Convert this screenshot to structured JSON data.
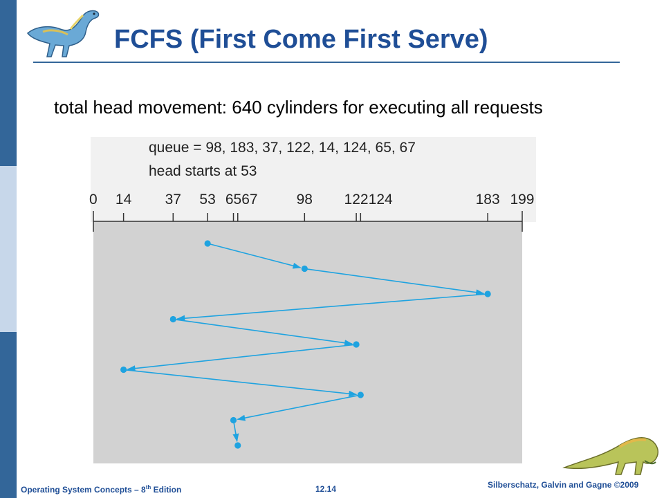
{
  "slide": {
    "title": "FCFS (First Come First Serve)",
    "subtitle": "total head movement: 640 cylinders for executing all requests"
  },
  "diagram": {
    "queue_text": "queue = 98, 183, 37, 122, 14, 124, 65, 67",
    "head_text": "head starts at 53",
    "axis_min": 0,
    "axis_max": 199,
    "tick_values": [
      0,
      14,
      37,
      53,
      65,
      67,
      98,
      122,
      124,
      183,
      199
    ],
    "tick_labels": [
      "0",
      "14",
      "37",
      "53",
      "65",
      "67",
      "98",
      "122",
      "124",
      "183",
      "199"
    ],
    "visit_order": [
      53,
      98,
      183,
      37,
      122,
      14,
      124,
      65,
      67
    ],
    "path_color": "#1fa3e0"
  },
  "footer": {
    "left_prefix": "Operating System Concepts – 8",
    "left_sup": "th",
    "left_suffix": " Edition",
    "center": "12.14",
    "right": "Silberschatz, Galvin and Gagne ©2009"
  },
  "icons": [
    "dinosaur-logo-icon",
    "dinosaur-footer-icon"
  ]
}
